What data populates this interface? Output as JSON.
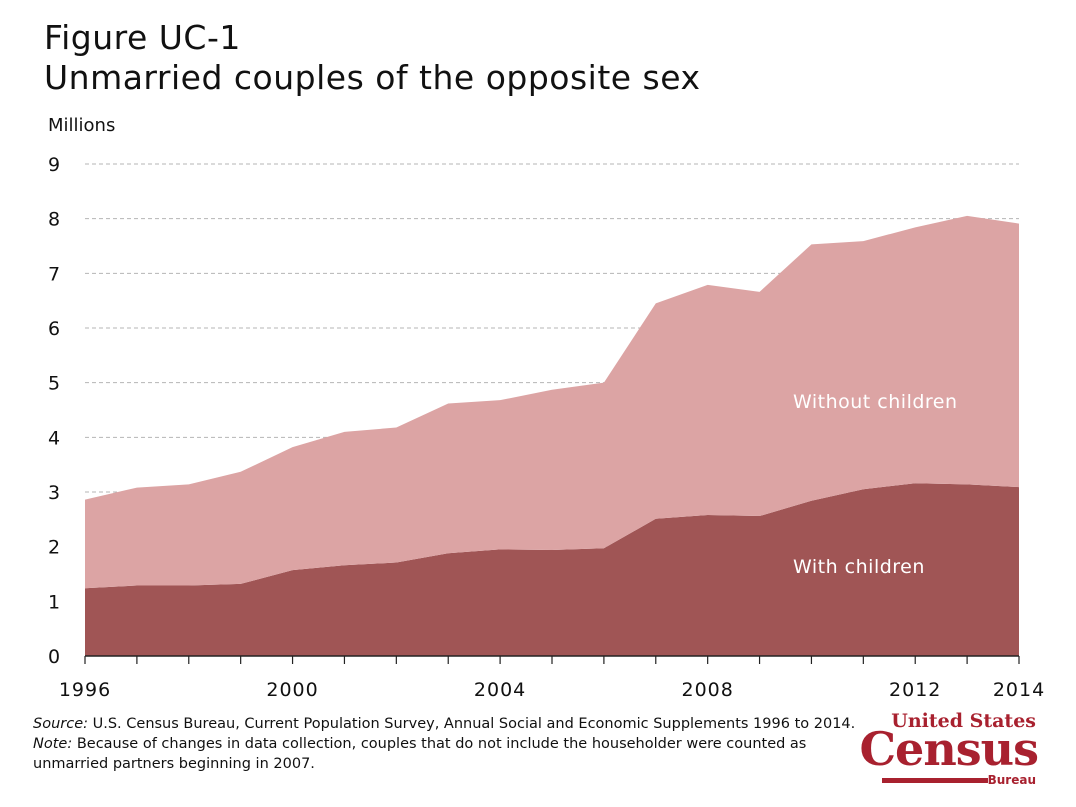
{
  "title": {
    "line1": "Figure UC-1",
    "line2": "Unmarried couples of the opposite sex"
  },
  "notes": {
    "source_label": "Source:",
    "source_text": " U.S. Census Bureau, Current Population Survey, Annual Social and Economic Supplements 1996 to 2014.",
    "note_label": "Note:",
    "note_text": " Because of changes in data collection, couples that do not include the householder were counted as unmarried partners beginning in 2007."
  },
  "logo": {
    "top": "United States",
    "main": "Census",
    "bottom": "Bureau"
  },
  "colors": {
    "with_children": "#a05555",
    "without_children": "#dca4a4",
    "grid": "#b5b5b5",
    "logo": "#a8212f"
  },
  "chart_data": {
    "type": "area",
    "stacked": true,
    "ylabel": "Millions",
    "ylim": [
      0,
      9
    ],
    "yticks": [
      0,
      1,
      2,
      3,
      4,
      5,
      6,
      7,
      8,
      9
    ],
    "xlim": [
      1996,
      2014
    ],
    "xticks": [
      1996,
      2000,
      2004,
      2008,
      2012,
      2014
    ],
    "grid": true,
    "x": [
      1996,
      1997,
      1998,
      1999,
      2000,
      2001,
      2002,
      2003,
      2004,
      2005,
      2006,
      2007,
      2008,
      2009,
      2010,
      2011,
      2012,
      2013,
      2014
    ],
    "series": [
      {
        "name": "With children",
        "color": "#a05555",
        "values": [
          1.24,
          1.29,
          1.29,
          1.32,
          1.57,
          1.66,
          1.71,
          1.88,
          1.95,
          1.94,
          1.97,
          2.51,
          2.58,
          2.56,
          2.84,
          3.05,
          3.16,
          3.14,
          3.09
        ]
      },
      {
        "name": "Without children",
        "color": "#dca4a4",
        "values": [
          1.62,
          1.79,
          1.85,
          2.05,
          2.25,
          2.44,
          2.47,
          2.74,
          2.73,
          2.93,
          3.03,
          3.94,
          4.21,
          4.1,
          4.69,
          4.54,
          4.68,
          4.91,
          4.82
        ]
      }
    ]
  }
}
